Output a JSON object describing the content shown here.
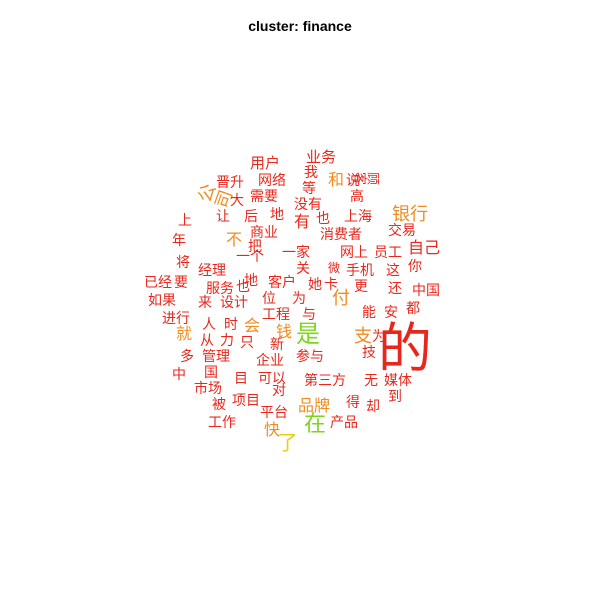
{
  "title": "cluster: finance",
  "palette": {
    "red": "#e8271c",
    "orange_red": "#ea4d1a",
    "orange": "#f08c1e",
    "yellow": "#e8d10c",
    "green": "#7fd321"
  },
  "words": [
    {
      "text": "的",
      "color": "#e8271c"
    },
    {
      "text": "是",
      "color": "#7fd321"
    },
    {
      "text": "在",
      "color": "#7fd321"
    },
    {
      "text": "了",
      "color": "#e8d10c"
    },
    {
      "text": "银行",
      "color": "#f08c1e"
    },
    {
      "text": "公司",
      "color": "#f08c1e"
    },
    {
      "text": "付",
      "color": "#f08c1e"
    },
    {
      "text": "支",
      "color": "#f08c1e"
    },
    {
      "text": "就",
      "color": "#f08c1e"
    },
    {
      "text": "会",
      "color": "#f08c1e"
    },
    {
      "text": "快",
      "color": "#f08c1e"
    },
    {
      "text": "不",
      "color": "#f08c1e"
    },
    {
      "text": "和",
      "color": "#f08c1e"
    },
    {
      "text": "品牌",
      "color": "#f08c1e"
    },
    {
      "text": "钱",
      "color": "#f08c1e"
    },
    {
      "text": "用户",
      "color": "#e8271c"
    },
    {
      "text": "业务",
      "color": "#e8271c"
    },
    {
      "text": "晋升",
      "color": "#e8271c"
    },
    {
      "text": "网络",
      "color": "#e8271c"
    },
    {
      "text": "我",
      "color": "#e8271c"
    },
    {
      "text": "等",
      "color": "#e8271c"
    },
    {
      "text": "说",
      "color": "#e8271c"
    },
    {
      "text": "高",
      "color": "#e8271c"
    },
    {
      "text": "顾客",
      "color": "#e8271c"
    },
    {
      "text": "大",
      "color": "#e8271c"
    },
    {
      "text": "需要",
      "color": "#e8271c"
    },
    {
      "text": "没有",
      "color": "#e8271c"
    },
    {
      "text": "让",
      "color": "#e8271c"
    },
    {
      "text": "后",
      "color": "#e8271c"
    },
    {
      "text": "地",
      "color": "#e8271c"
    },
    {
      "text": "有",
      "color": "#e8271c"
    },
    {
      "text": "也",
      "color": "#e8271c"
    },
    {
      "text": "上海",
      "color": "#e8271c"
    },
    {
      "text": "交易",
      "color": "#e8271c"
    },
    {
      "text": "上",
      "color": "#e8271c"
    },
    {
      "text": "商业",
      "color": "#e8271c"
    },
    {
      "text": "消费者",
      "color": "#e8271c"
    },
    {
      "text": "年",
      "color": "#e8271c"
    },
    {
      "text": "把",
      "color": "#e8271c"
    },
    {
      "text": "一个",
      "color": "#e8271c"
    },
    {
      "text": "一家",
      "color": "#e8271c"
    },
    {
      "text": "网上",
      "color": "#e8271c"
    },
    {
      "text": "员工",
      "color": "#e8271c"
    },
    {
      "text": "自己",
      "color": "#e8271c"
    },
    {
      "text": "将",
      "color": "#e8271c"
    },
    {
      "text": "经理",
      "color": "#e8271c"
    },
    {
      "text": "地",
      "color": "#e8271c"
    },
    {
      "text": "关",
      "color": "#e8271c"
    },
    {
      "text": "微",
      "color": "#e8271c"
    },
    {
      "text": "手机",
      "color": "#e8271c"
    },
    {
      "text": "这",
      "color": "#e8271c"
    },
    {
      "text": "你",
      "color": "#e8271c"
    },
    {
      "text": "已经",
      "color": "#e8271c"
    },
    {
      "text": "要",
      "color": "#e8271c"
    },
    {
      "text": "服务",
      "color": "#e8271c"
    },
    {
      "text": "也",
      "color": "#e8271c"
    },
    {
      "text": "客户",
      "color": "#e8271c"
    },
    {
      "text": "她",
      "color": "#e8271c"
    },
    {
      "text": "卡",
      "color": "#e8271c"
    },
    {
      "text": "更",
      "color": "#e8271c"
    },
    {
      "text": "还",
      "color": "#e8271c"
    },
    {
      "text": "中国",
      "color": "#e8271c"
    },
    {
      "text": "如果",
      "color": "#e8271c"
    },
    {
      "text": "来",
      "color": "#e8271c"
    },
    {
      "text": "设计",
      "color": "#e8271c"
    },
    {
      "text": "位",
      "color": "#e8271c"
    },
    {
      "text": "为",
      "color": "#e8271c"
    },
    {
      "text": "都",
      "color": "#e8271c"
    },
    {
      "text": "进行",
      "color": "#e8271c"
    },
    {
      "text": "工程",
      "color": "#e8271c"
    },
    {
      "text": "与",
      "color": "#e8271c"
    },
    {
      "text": "能",
      "color": "#e8271c"
    },
    {
      "text": "安",
      "color": "#e8271c"
    },
    {
      "text": "人",
      "color": "#e8271c"
    },
    {
      "text": "时",
      "color": "#e8271c"
    },
    {
      "text": "从",
      "color": "#e8271c"
    },
    {
      "text": "力",
      "color": "#e8271c"
    },
    {
      "text": "只",
      "color": "#e8271c"
    },
    {
      "text": "新",
      "color": "#e8271c"
    },
    {
      "text": "为",
      "color": "#e8271c"
    },
    {
      "text": "多",
      "color": "#e8271c"
    },
    {
      "text": "管理",
      "color": "#e8271c"
    },
    {
      "text": "企业",
      "color": "#e8271c"
    },
    {
      "text": "参与",
      "color": "#e8271c"
    },
    {
      "text": "技",
      "color": "#e8271c"
    },
    {
      "text": "中",
      "color": "#e8271c"
    },
    {
      "text": "国",
      "color": "#e8271c"
    },
    {
      "text": "目",
      "color": "#e8271c"
    },
    {
      "text": "可以",
      "color": "#e8271c"
    },
    {
      "text": "第三方",
      "color": "#e8271c"
    },
    {
      "text": "无",
      "color": "#e8271c"
    },
    {
      "text": "媒体",
      "color": "#e8271c"
    },
    {
      "text": "市场",
      "color": "#e8271c"
    },
    {
      "text": "对",
      "color": "#e8271c"
    },
    {
      "text": "到",
      "color": "#e8271c"
    },
    {
      "text": "被",
      "color": "#e8271c"
    },
    {
      "text": "项目",
      "color": "#e8271c"
    },
    {
      "text": "平台",
      "color": "#e8271c"
    },
    {
      "text": "得",
      "color": "#e8271c"
    },
    {
      "text": "却",
      "color": "#e8271c"
    },
    {
      "text": "工作",
      "color": "#e8271c"
    },
    {
      "text": "产品",
      "color": "#e8271c"
    }
  ]
}
